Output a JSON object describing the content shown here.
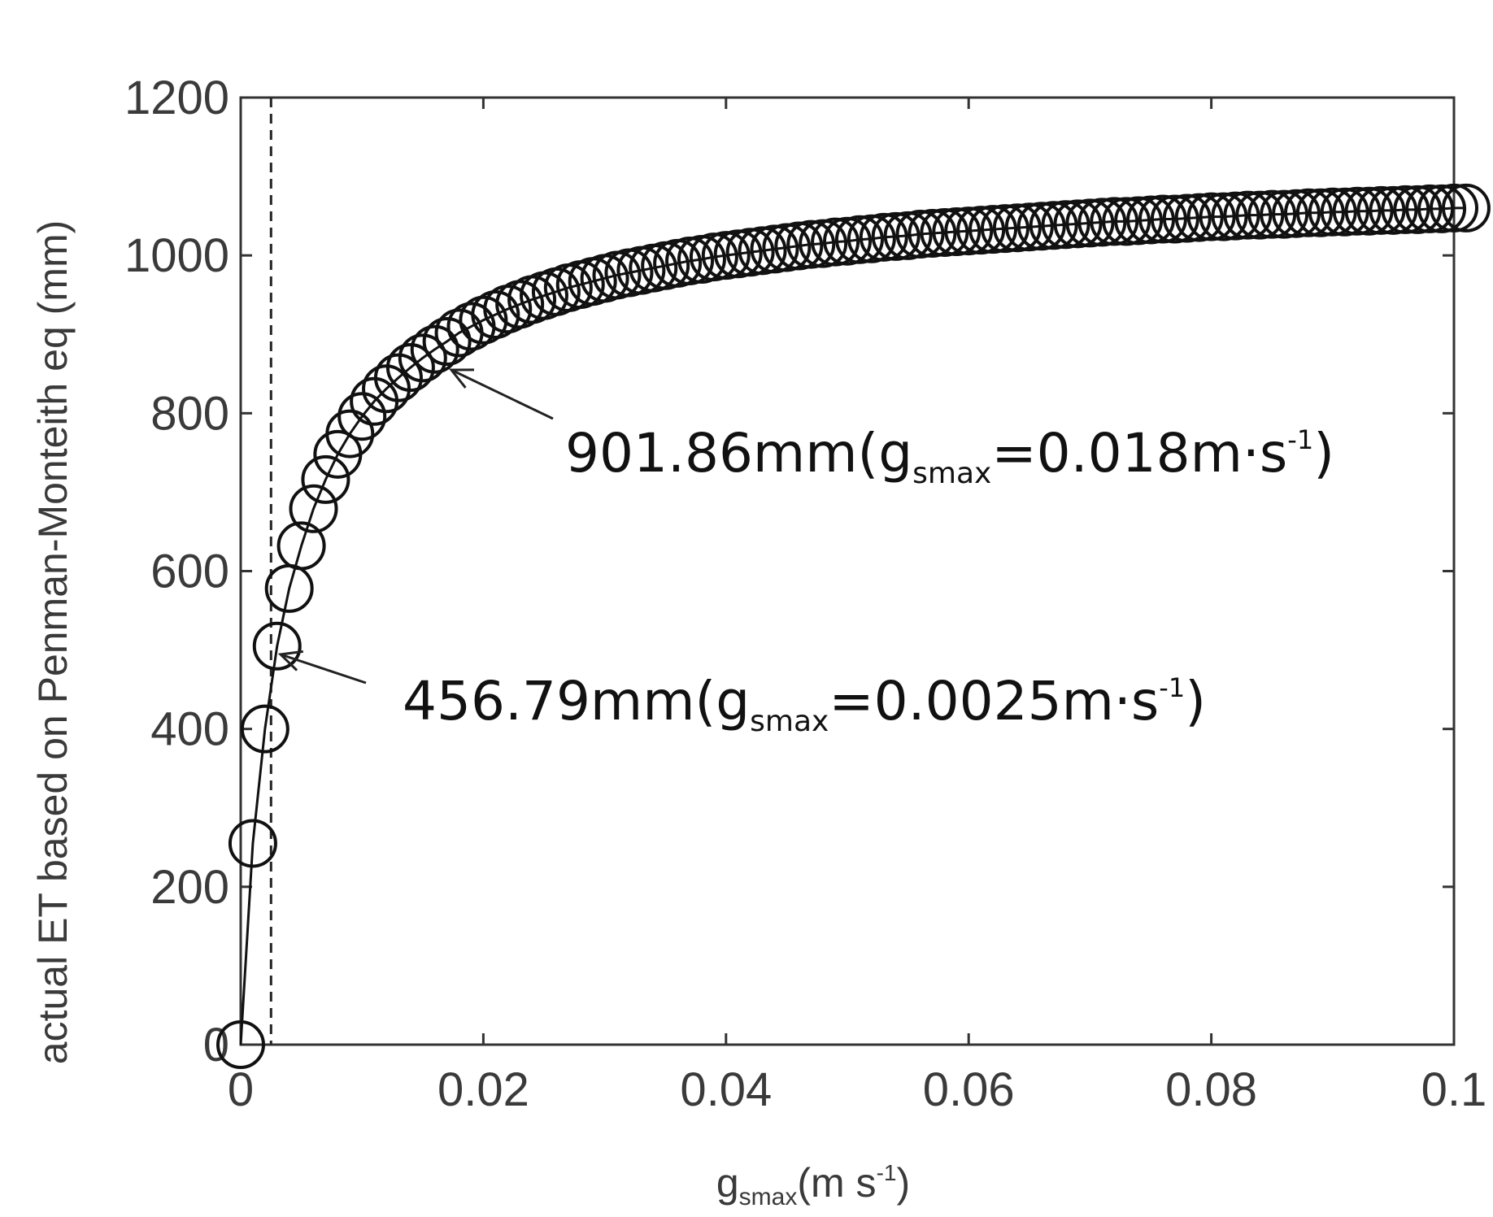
{
  "chart_data": {
    "type": "scatter",
    "xlabel": {
      "main": "g",
      "sub": "smax",
      "unit_pre": "(m s",
      "sup": "-1",
      "unit_post": ")"
    },
    "ylabel": "actual ET based on Penman-Monteith eq (mm)",
    "xlim": [
      0,
      0.1
    ],
    "ylim": [
      0,
      1200
    ],
    "x_ticks": [
      0,
      0.02,
      0.04,
      0.06,
      0.08,
      0.1
    ],
    "x_tick_labels": [
      "0",
      "0.02",
      "0.04",
      "0.06",
      "0.08",
      "0.1"
    ],
    "y_ticks": [
      0,
      200,
      400,
      600,
      800,
      1000,
      1200
    ],
    "y_tick_labels": [
      "0",
      "200",
      "400",
      "600",
      "800",
      "1000",
      "1200"
    ],
    "reference_line": {
      "x": 0.0025,
      "style": "dashed"
    },
    "series": [
      {
        "marker": "open-circle",
        "line": "solid",
        "x": [
          0,
          0.001,
          0.002,
          0.003,
          0.004,
          0.005,
          0.006,
          0.007,
          0.008,
          0.009,
          0.01,
          0.011,
          0.012,
          0.013,
          0.014,
          0.015,
          0.016,
          0.017,
          0.018,
          0.019,
          0.02,
          0.021,
          0.022,
          0.023,
          0.024,
          0.025,
          0.026,
          0.027,
          0.028,
          0.029,
          0.03,
          0.031,
          0.032,
          0.033,
          0.034,
          0.035,
          0.036,
          0.037,
          0.038,
          0.039,
          0.04,
          0.041,
          0.042,
          0.043,
          0.044,
          0.045,
          0.046,
          0.047,
          0.048,
          0.049,
          0.05,
          0.051,
          0.052,
          0.053,
          0.054,
          0.055,
          0.056,
          0.057,
          0.058,
          0.059,
          0.06,
          0.061,
          0.062,
          0.063,
          0.064,
          0.065,
          0.066,
          0.067,
          0.068,
          0.069,
          0.07,
          0.071,
          0.072,
          0.073,
          0.074,
          0.075,
          0.076,
          0.077,
          0.078,
          0.079,
          0.08,
          0.081,
          0.082,
          0.083,
          0.084,
          0.085,
          0.086,
          0.087,
          0.088,
          0.089,
          0.09,
          0.091,
          0.092,
          0.093,
          0.094,
          0.095,
          0.096,
          0.097,
          0.098,
          0.099,
          0.1,
          0.101
        ],
        "y": [
          0,
          255,
          400,
          505,
          578,
          632,
          679,
          716,
          748,
          774,
          796,
          815,
          831,
          845,
          858,
          870,
          881,
          891,
          901.86,
          910,
          918,
          925,
          932,
          938,
          944,
          949,
          954,
          959,
          963,
          967,
          971,
          975,
          978,
          981,
          984,
          987,
          990,
          993,
          995,
          998,
          1000,
          1002,
          1004,
          1006,
          1008,
          1010,
          1012,
          1014,
          1015,
          1017,
          1018,
          1020,
          1021,
          1023,
          1024,
          1025,
          1027,
          1028,
          1029,
          1030,
          1031,
          1032,
          1033,
          1034,
          1035,
          1036,
          1037,
          1038,
          1039,
          1040,
          1041,
          1042,
          1043,
          1043,
          1044,
          1045,
          1046,
          1046,
          1047,
          1048,
          1049,
          1049,
          1050,
          1051,
          1051,
          1052,
          1052,
          1053,
          1054,
          1054,
          1055,
          1055,
          1056,
          1056,
          1057,
          1057,
          1058,
          1058,
          1059,
          1059,
          1060,
          1060
        ]
      }
    ],
    "annotations": [
      {
        "value_text": "901.86mm(g",
        "sub": "smax",
        "eq_text": "=0.018m·s",
        "sup": "-1",
        "close": ")",
        "x": 0.018,
        "y": 901.86
      },
      {
        "value_text": "456.79mm(g",
        "sub": "smax",
        "eq_text": "=0.0025m·s",
        "sup": "-1",
        "close": ")",
        "x": 0.0025,
        "y": 456.79
      }
    ]
  }
}
